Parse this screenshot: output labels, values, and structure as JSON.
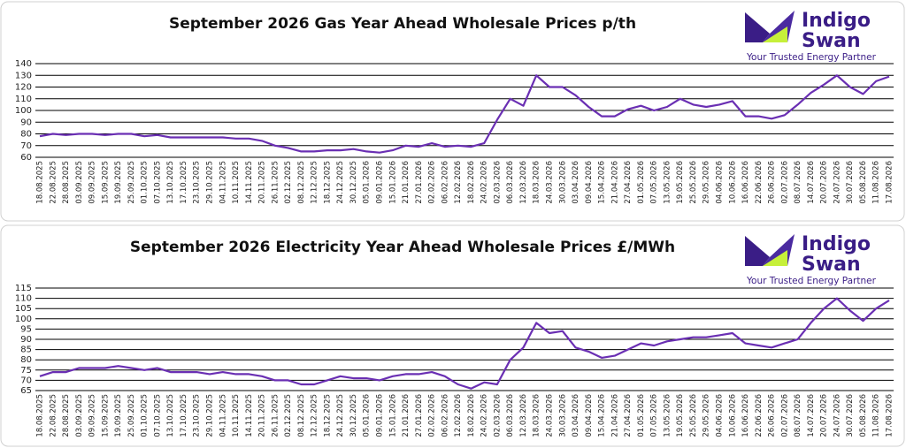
{
  "chart_data": [
    {
      "type": "line",
      "title": "September 2026 Gas Year Ahead Wholesale Prices p/th",
      "logo": {
        "name_line1": "Indigo",
        "name_line2": "Swan",
        "tagline": "Your Trusted Energy Partner"
      },
      "color": "#6a2fb3",
      "grid": true,
      "ylim": [
        60,
        140
      ],
      "yticks": [
        60,
        70,
        80,
        90,
        100,
        110,
        120,
        130,
        140
      ],
      "x": [
        "18.08.2025",
        "22.08.2025",
        "28.08.2025",
        "03.09.2025",
        "09.09.2025",
        "15.09.2025",
        "19.09.2025",
        "25.09.2025",
        "01.10.2025",
        "07.10.2025",
        "13.10.2025",
        "17.10.2025",
        "23.10.2025",
        "29.10.2025",
        "04.11.2025",
        "10.11.2025",
        "14.11.2025",
        "20.11.2025",
        "26.11.2025",
        "02.12.2025",
        "08.12.2025",
        "12.12.2025",
        "18.12.2025",
        "24.12.2025",
        "30.12.2025",
        "05.01.2026",
        "09.01.2026",
        "15.01.2026",
        "21.01.2026",
        "27.01.2026",
        "02.02.2026",
        "06.02.2026",
        "12.02.2026",
        "18.02.2026",
        "24.02.2026",
        "02.03.2026",
        "06.03.2026",
        "12.03.2026",
        "18.03.2026",
        "24.03.2026",
        "30.03.2026",
        "03.04.2026",
        "09.04.2026",
        "15.04.2026",
        "21.04.2026",
        "27.04.2026",
        "01.05.2026",
        "07.05.2026",
        "13.05.2026",
        "19.05.2026",
        "25.05.2026",
        "29.05.2026",
        "04.06.2026",
        "10.06.2026",
        "16.06.2026",
        "22.06.2026",
        "26.06.2026",
        "02.07.2026",
        "08.07.2026",
        "14.07.2026",
        "20.07.2026",
        "24.07.2026",
        "30.07.2026",
        "05.08.2026",
        "11.08.2026",
        "17.08.2026"
      ],
      "values": [
        78,
        80,
        79,
        80,
        80,
        79,
        80,
        80,
        78,
        79,
        77,
        77,
        77,
        77,
        77,
        76,
        76,
        74,
        70,
        68,
        65,
        65,
        66,
        66,
        67,
        65,
        64,
        66,
        70,
        69,
        72,
        69,
        70,
        69,
        72,
        92,
        110,
        104,
        130,
        120,
        120,
        113,
        103,
        95,
        95,
        101,
        104,
        100,
        103,
        110,
        105,
        103,
        105,
        108,
        95,
        95,
        93,
        96,
        105,
        115,
        122,
        130,
        120,
        114,
        125,
        129
      ]
    },
    {
      "type": "line",
      "title": "September 2026 Electricity Year Ahead Wholesale Prices £/MWh",
      "logo": {
        "name_line1": "Indigo",
        "name_line2": "Swan",
        "tagline": "Your Trusted Energy Partner"
      },
      "color": "#6a2fb3",
      "grid": true,
      "ylim": [
        65,
        115
      ],
      "yticks": [
        65,
        70,
        75,
        80,
        85,
        90,
        95,
        100,
        105,
        110,
        115
      ],
      "x": [
        "18.08.2025",
        "22.08.2025",
        "28.08.2025",
        "03.09.2025",
        "09.09.2025",
        "15.09.2025",
        "19.09.2025",
        "25.09.2025",
        "01.10.2025",
        "07.10.2025",
        "13.10.2025",
        "17.10.2025",
        "23.10.2025",
        "29.10.2025",
        "04.11.2025",
        "10.11.2025",
        "14.11.2025",
        "20.11.2025",
        "26.11.2025",
        "02.12.2025",
        "08.12.2025",
        "12.12.2025",
        "18.12.2025",
        "24.12.2025",
        "30.12.2025",
        "05.01.2026",
        "09.01.2026",
        "15.01.2026",
        "21.01.2026",
        "27.01.2026",
        "02.02.2026",
        "06.02.2026",
        "12.02.2026",
        "18.02.2026",
        "24.02.2026",
        "02.03.2026",
        "06.03.2026",
        "12.03.2026",
        "18.03.2026",
        "24.03.2026",
        "30.03.2026",
        "03.04.2026",
        "09.04.2026",
        "15.04.2026",
        "21.04.2026",
        "27.04.2026",
        "01.05.2026",
        "07.05.2026",
        "13.05.2026",
        "19.05.2026",
        "25.05.2026",
        "29.05.2026",
        "04.06.2026",
        "10.06.2026",
        "16.06.2026",
        "22.06.2026",
        "26.06.2026",
        "02.07.2026",
        "08.07.2026",
        "14.07.2026",
        "20.07.2026",
        "24.07.2026",
        "30.07.2026",
        "05.08.2026",
        "11.08.2026",
        "17.08.2026"
      ],
      "values": [
        72,
        74,
        74,
        76,
        76,
        76,
        77,
        76,
        75,
        76,
        74,
        74,
        74,
        73,
        74,
        73,
        73,
        72,
        70,
        70,
        68,
        68,
        70,
        72,
        71,
        71,
        70,
        72,
        73,
        73,
        74,
        72,
        68,
        66,
        69,
        68,
        80,
        86,
        98,
        93,
        94,
        86,
        84,
        81,
        82,
        85,
        88,
        87,
        89,
        90,
        91,
        91,
        92,
        93,
        88,
        87,
        86,
        88,
        90,
        98,
        105,
        110,
        104,
        99,
        105,
        109
      ]
    }
  ]
}
